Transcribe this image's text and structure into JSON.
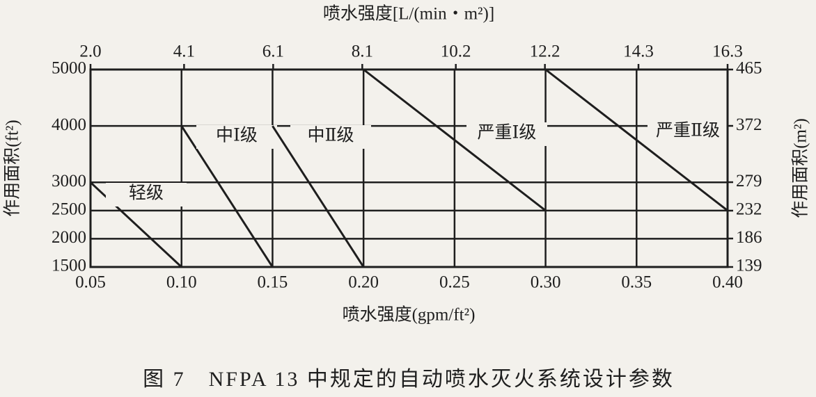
{
  "chart_data": {
    "type": "line",
    "caption": "图 7　NFPA 13 中规定的自动喷水灭火系统设计参数",
    "xlabel": "喷水强度(gpm/ft²)",
    "x2label": "喷水强度[L/(min・m²)]",
    "ylabel": "作用面积(ft²)",
    "y2label": "作用面积(m²)",
    "xlim": [
      0.05,
      0.4
    ],
    "xticks": [
      0.05,
      {
        "value": 0.1,
        "label": "0.10"
      },
      0.15,
      {
        "value": 0.2,
        "label": "0.20"
      },
      0.25,
      {
        "value": 0.3,
        "label": "0.30"
      },
      0.35,
      {
        "value": 0.4,
        "label": "0.40"
      }
    ],
    "x2lim": [
      2.0,
      16.3
    ],
    "x2ticks": [
      {
        "value": 2,
        "label": "2.0"
      },
      4.1,
      6.1,
      8.1,
      10.2,
      12.2,
      14.3,
      16.3
    ],
    "ylim": [
      1500,
      5000
    ],
    "yticks": [
      1500,
      2000,
      2500,
      3000,
      4000,
      5000
    ],
    "y2lim": [
      139,
      465
    ],
    "y2ticks": [
      139,
      186,
      232,
      279,
      372,
      465
    ],
    "grid": true,
    "color": "#1e1e1e",
    "series": [
      {
        "name": "轻级",
        "x": [
          0.05,
          0.1
        ],
        "values": [
          3000,
          1500
        ]
      },
      {
        "name": "中Ⅰ级",
        "x": [
          0.1,
          0.15
        ],
        "values": [
          4000,
          1500
        ]
      },
      {
        "name": "中Ⅱ级",
        "x": [
          0.15,
          0.2
        ],
        "values": [
          4000,
          1500
        ]
      },
      {
        "name": "严重Ⅰ级",
        "x": [
          0.2,
          0.3
        ],
        "values": [
          5000,
          2500
        ]
      },
      {
        "name": "严重Ⅱ级",
        "x": [
          0.3,
          0.4
        ],
        "values": [
          5000,
          2500
        ]
      }
    ]
  }
}
